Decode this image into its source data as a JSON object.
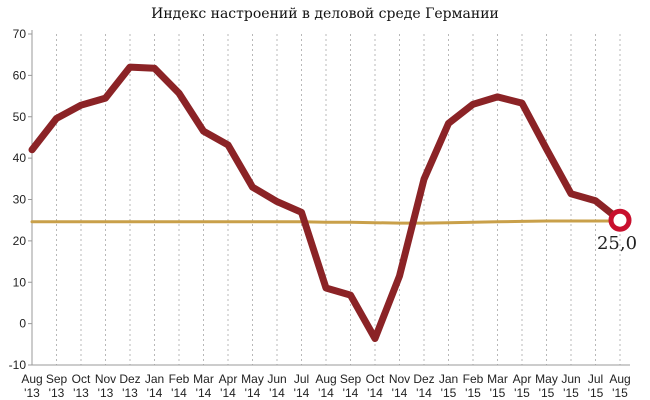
{
  "chart_data": {
    "type": "line",
    "title": "Индекс настроений в деловой среде Германии",
    "xlabel": "",
    "ylabel": "",
    "ylim": [
      -10,
      70
    ],
    "yticks": [
      -10,
      0,
      10,
      20,
      30,
      40,
      50,
      60,
      70
    ],
    "grid": "vertical dotted",
    "categories": [
      {
        "month": "Aug",
        "year": "'13"
      },
      {
        "month": "Sep",
        "year": "'13"
      },
      {
        "month": "Oct",
        "year": "'13"
      },
      {
        "month": "Nov",
        "year": "'13"
      },
      {
        "month": "Dez",
        "year": "'13"
      },
      {
        "month": "Jan",
        "year": "'14"
      },
      {
        "month": "Feb",
        "year": "'14"
      },
      {
        "month": "Mar",
        "year": "'14"
      },
      {
        "month": "Apr",
        "year": "'14"
      },
      {
        "month": "May",
        "year": "'14"
      },
      {
        "month": "Jun",
        "year": "'14"
      },
      {
        "month": "Jul",
        "year": "'14"
      },
      {
        "month": "Aug",
        "year": "'14"
      },
      {
        "month": "Sep",
        "year": "'14"
      },
      {
        "month": "Oct",
        "year": "'14"
      },
      {
        "month": "Nov",
        "year": "'14"
      },
      {
        "month": "Dez",
        "year": "'14"
      },
      {
        "month": "Jan",
        "year": "'15"
      },
      {
        "month": "Feb",
        "year": "'15"
      },
      {
        "month": "Mar",
        "year": "'15"
      },
      {
        "month": "Apr",
        "year": "'15"
      },
      {
        "month": "May",
        "year": "'15"
      },
      {
        "month": "Jun",
        "year": "'15"
      },
      {
        "month": "Jul",
        "year": "'15"
      },
      {
        "month": "Aug",
        "year": "'15"
      }
    ],
    "series": [
      {
        "color": "#8b2326",
        "values": [
          42,
          49.6,
          52.8,
          54.5,
          62,
          61.7,
          55.7,
          46.5,
          43.2,
          33,
          29.5,
          26.9,
          8.6,
          6.9,
          -3.6,
          11.5,
          34.9,
          48.4,
          53.0,
          54.8,
          53.3,
          42.2,
          31.4,
          29.7,
          25.0
        ]
      },
      {
        "color": "#c9a04a",
        "values": [
          24.6,
          24.6,
          24.6,
          24.6,
          24.6,
          24.6,
          24.6,
          24.6,
          24.6,
          24.6,
          24.6,
          24.6,
          24.5,
          24.5,
          24.4,
          24.3,
          24.3,
          24.4,
          24.5,
          24.6,
          24.7,
          24.8,
          24.8,
          24.8,
          24.8
        ]
      }
    ],
    "end_marker": {
      "value": 25.0,
      "label": "25,0"
    }
  }
}
